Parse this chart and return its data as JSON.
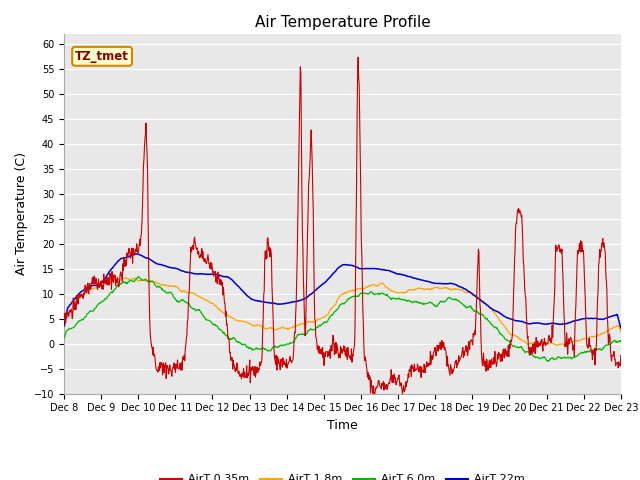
{
  "title": "Air Temperature Profile",
  "xlabel": "Time",
  "ylabel": "Air Temperature (C)",
  "ylim": [
    -10,
    62
  ],
  "yticks": [
    -10,
    -5,
    0,
    5,
    10,
    15,
    20,
    25,
    30,
    35,
    40,
    45,
    50,
    55,
    60
  ],
  "xtick_labels": [
    "Dec 8",
    "Dec 9",
    "Dec 10",
    "Dec 11",
    "Dec 12",
    "Dec 13",
    "Dec 14",
    "Dec 15",
    "Dec 16",
    "Dec 17",
    "Dec 18",
    "Dec 19",
    "Dec 20",
    "Dec 21",
    "Dec 22",
    "Dec 23"
  ],
  "colors": {
    "red": "#cc0000",
    "orange": "#ffa500",
    "green": "#00bb00",
    "blue": "#0000cc"
  },
  "legend_labels": [
    "AirT 0.35m",
    "AirT 1.8m",
    "AirT 6.0m",
    "AirT 22m"
  ],
  "annotation_text": "TZ_tmet",
  "annotation_color": "#880000",
  "annotation_box_color": "#ffffcc",
  "annotation_box_edge": "#cc8800",
  "background_color": "#e8e8e8",
  "grid_color": "#ffffff",
  "title_fontsize": 11,
  "tick_fontsize": 7,
  "label_fontsize": 9
}
